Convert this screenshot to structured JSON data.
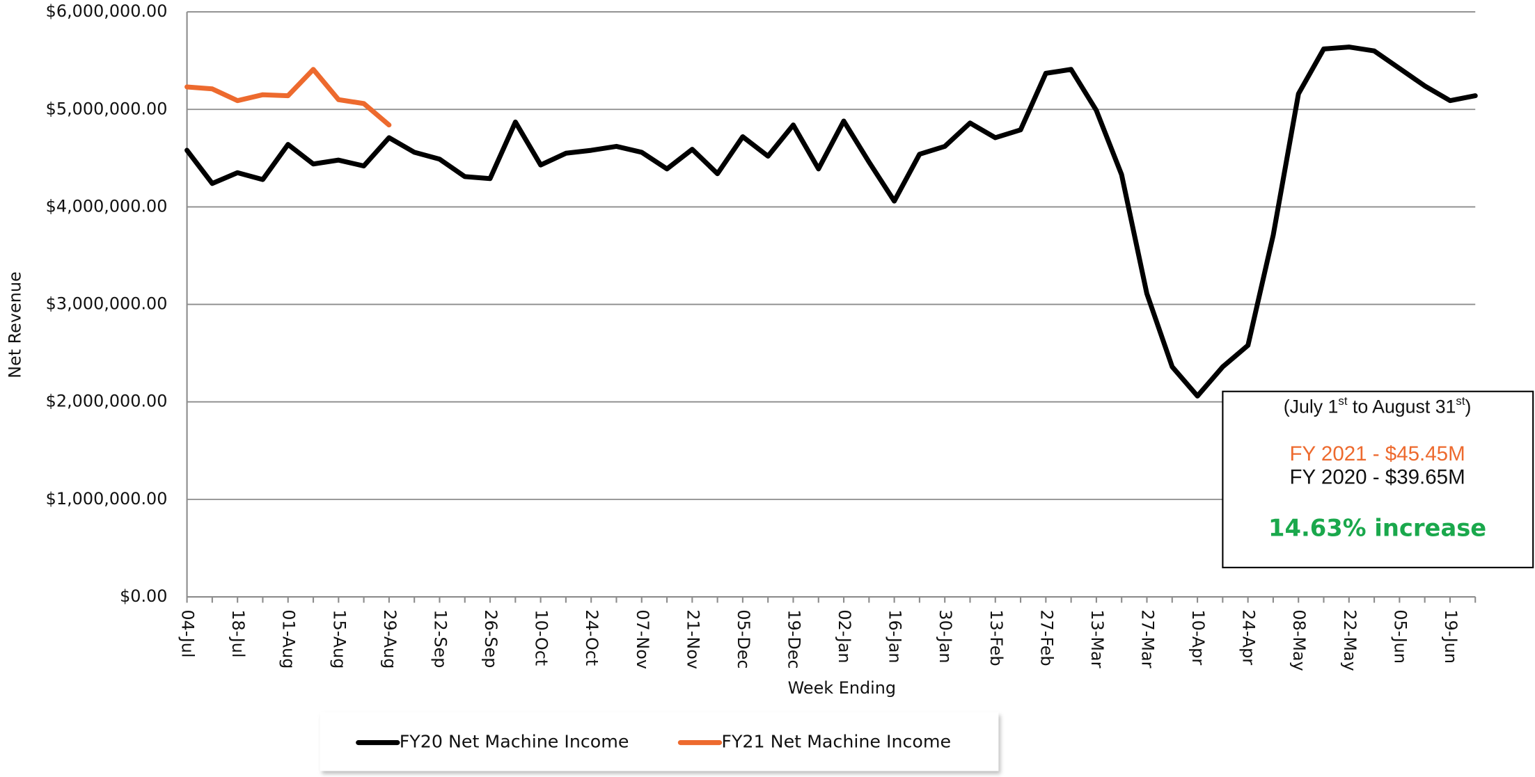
{
  "chart_data": {
    "type": "line",
    "y_label": "Net Revenue",
    "x_label": "Week Ending",
    "categories": [
      "04-Jul",
      null,
      "18-Jul",
      null,
      "01-Aug",
      null,
      "15-Aug",
      null,
      "29-Aug",
      null,
      "12-Sep",
      null,
      "26-Sep",
      null,
      "10-Oct",
      null,
      "24-Oct",
      null,
      "07-Nov",
      null,
      "21-Nov",
      null,
      "05-Dec",
      null,
      "19-Dec",
      null,
      "02-Jan",
      null,
      "16-Jan",
      null,
      "30-Jan",
      null,
      "13-Feb",
      null,
      "27-Feb",
      null,
      "13-Mar",
      null,
      "27-Mar",
      null,
      "10-Apr",
      null,
      "24-Apr",
      null,
      "08-May",
      null,
      "22-May",
      null,
      "05-Jun",
      null,
      "19-Jun",
      null
    ],
    "series": [
      {
        "name": "FY20 Net Machine Income",
        "color": "#000000",
        "values": [
          4580000,
          4240000,
          4350000,
          4280000,
          4640000,
          4440000,
          4480000,
          4420000,
          4710000,
          4560000,
          4490000,
          4310000,
          4290000,
          4870000,
          4430000,
          4550000,
          4580000,
          4620000,
          4560000,
          4390000,
          4590000,
          4340000,
          4720000,
          4520000,
          4840000,
          4390000,
          4880000,
          4460000,
          4060000,
          4540000,
          4620000,
          4860000,
          4710000,
          4790000,
          5370000,
          5410000,
          4990000,
          4330000,
          3110000,
          2360000,
          2060000,
          2360000,
          2580000,
          3710000,
          5160000,
          5620000,
          5640000,
          5600000,
          5420000,
          5240000,
          5090000,
          5140000
        ]
      },
      {
        "name": "FY21 Net Machine Income",
        "color": "#ed6a2e",
        "values": [
          5230000,
          5210000,
          5090000,
          5150000,
          5140000,
          5410000,
          5100000,
          5060000,
          4840000,
          null,
          null,
          null,
          null,
          null,
          null,
          null,
          null,
          null,
          null,
          null,
          null,
          null,
          null,
          null,
          null,
          null,
          null,
          null,
          null,
          null,
          null,
          null,
          null,
          null,
          null,
          null,
          null,
          null,
          null,
          null,
          null,
          null,
          null,
          null,
          null,
          null,
          null,
          null,
          null,
          null,
          null,
          null
        ]
      }
    ],
    "ylim": [
      0,
      6000000
    ],
    "yticks": [
      {
        "value": 0,
        "label": "$0.00"
      },
      {
        "value": 1000000,
        "label": "$1,000,000.00"
      },
      {
        "value": 2000000,
        "label": "$2,000,000.00"
      },
      {
        "value": 3000000,
        "label": "$3,000,000.00"
      },
      {
        "value": 4000000,
        "label": "$4,000,000.00"
      },
      {
        "value": 5000000,
        "label": "$5,000,000.00"
      },
      {
        "value": 6000000,
        "label": "$6,000,000.00"
      }
    ],
    "grid": true,
    "legend": "bottom",
    "annotation": {
      "period": [
        "(July 1",
        "st",
        " to August 31",
        "st",
        ")"
      ],
      "lines": [
        {
          "text": "FY 2021 - $45.45M",
          "color": "#ed6a2e"
        },
        {
          "text": "FY 2020 - $39.65M",
          "color": "#111111"
        }
      ],
      "highlight": {
        "text": "14.63% increase",
        "color": "#1aa84c"
      }
    }
  }
}
